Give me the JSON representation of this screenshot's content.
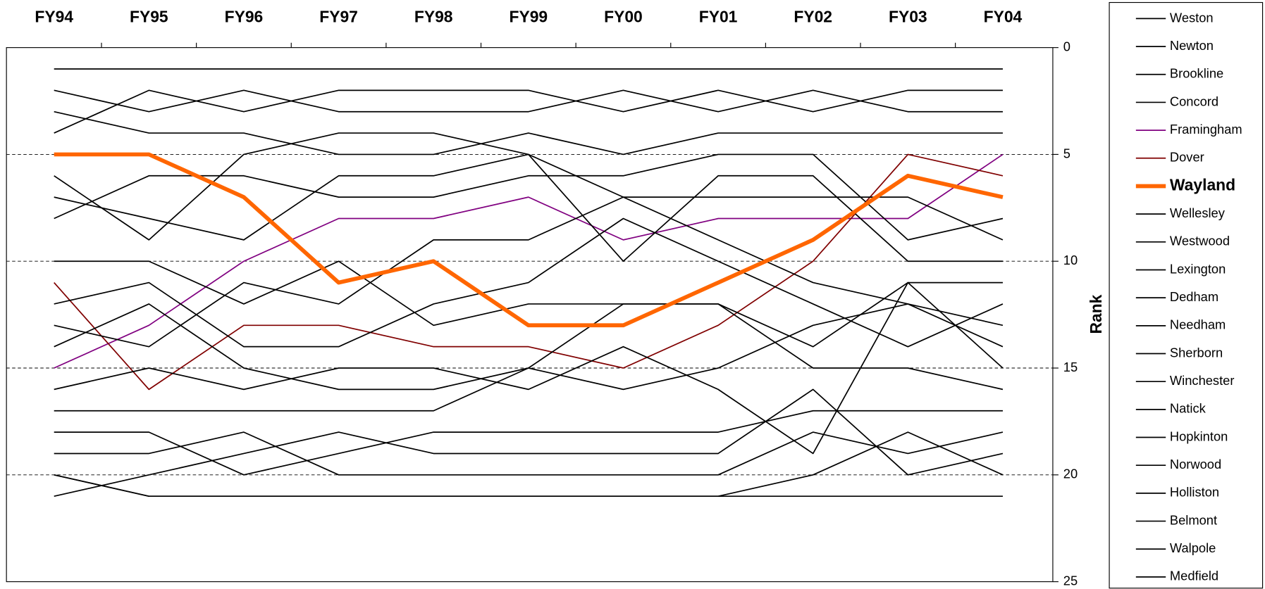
{
  "chart_data": {
    "type": "line",
    "y_label": "Rank",
    "categories": [
      "FY94",
      "FY95",
      "FY96",
      "FY97",
      "FY98",
      "FY99",
      "FY00",
      "FY01",
      "FY02",
      "FY03",
      "FY04"
    ],
    "ylim": [
      0,
      25
    ],
    "yticks": [
      0,
      5,
      10,
      15,
      20,
      25
    ],
    "y_inverted": true,
    "grid": true,
    "legend": "right",
    "series": [
      {
        "name": "Weston",
        "color": "#000000",
        "values": [
          1,
          1,
          1,
          1,
          1,
          1,
          1,
          1,
          1,
          1,
          1
        ]
      },
      {
        "name": "Newton",
        "color": "#000000",
        "values": [
          4,
          2,
          3,
          2,
          2,
          2,
          3,
          2,
          3,
          2,
          2
        ]
      },
      {
        "name": "Brookline",
        "color": "#000000",
        "values": [
          2,
          3,
          2,
          3,
          3,
          3,
          2,
          3,
          2,
          3,
          3
        ]
      },
      {
        "name": "Concord",
        "color": "#000000",
        "values": [
          3,
          4,
          4,
          5,
          5,
          4,
          5,
          4,
          4,
          4,
          4
        ]
      },
      {
        "name": "Framingham",
        "color": "#800080",
        "values": [
          15,
          13,
          10,
          8,
          8,
          7,
          9,
          8,
          8,
          8,
          5
        ]
      },
      {
        "name": "Dover",
        "color": "#800000",
        "values": [
          11,
          16,
          13,
          13,
          14,
          14,
          15,
          13,
          10,
          5,
          6
        ]
      },
      {
        "name": "Wayland",
        "color": "#ff6600",
        "line_width": 5,
        "values": [
          5,
          5,
          7,
          11,
          10,
          13,
          13,
          11,
          9,
          6,
          7
        ]
      },
      {
        "name": "Wellesley",
        "color": "#000000",
        "values": [
          8,
          6,
          6,
          7,
          7,
          6,
          6,
          5,
          5,
          9,
          8
        ]
      },
      {
        "name": "Westwood",
        "color": "#000000",
        "values": [
          6,
          9,
          5,
          4,
          4,
          5,
          7,
          7,
          7,
          7,
          9
        ]
      },
      {
        "name": "Lexington",
        "color": "#000000",
        "values": [
          7,
          8,
          9,
          6,
          6,
          5,
          10,
          6,
          6,
          10,
          10
        ]
      },
      {
        "name": "Dedham",
        "color": "#000000",
        "values": [
          10,
          10,
          12,
          10,
          13,
          12,
          12,
          12,
          14,
          11,
          11
        ]
      },
      {
        "name": "Needham",
        "color": "#000000",
        "values": [
          12,
          11,
          14,
          14,
          12,
          11,
          8,
          10,
          12,
          14,
          12
        ]
      },
      {
        "name": "Sherborn",
        "color": "#000000",
        "values": [
          13,
          14,
          11,
          12,
          9,
          9,
          7,
          9,
          11,
          12,
          13
        ]
      },
      {
        "name": "Winchester",
        "color": "#000000",
        "values": [
          14,
          12,
          15,
          16,
          16,
          15,
          16,
          15,
          13,
          12,
          14
        ]
      },
      {
        "name": "Natick",
        "color": "#000000",
        "values": [
          16,
          15,
          16,
          15,
          15,
          16,
          14,
          16,
          19,
          11,
          15
        ]
      },
      {
        "name": "Hopkinton",
        "color": "#000000",
        "values": [
          17,
          17,
          17,
          17,
          17,
          15,
          12,
          12,
          15,
          15,
          16
        ]
      },
      {
        "name": "Norwood",
        "color": "#000000",
        "values": [
          18,
          18,
          20,
          19,
          18,
          18,
          18,
          18,
          17,
          17,
          17
        ]
      },
      {
        "name": "Holliston",
        "color": "#000000",
        "values": [
          19,
          19,
          18,
          20,
          20,
          20,
          20,
          20,
          18,
          19,
          18
        ]
      },
      {
        "name": "Belmont",
        "color": "#000000",
        "values": [
          21,
          20,
          19,
          18,
          19,
          19,
          19,
          19,
          16,
          20,
          19
        ]
      },
      {
        "name": "Walpole",
        "color": "#000000",
        "values": [
          20,
          21,
          21,
          21,
          21,
          21,
          21,
          21,
          20,
          18,
          20
        ]
      },
      {
        "name": "Medfield",
        "color": "#000000",
        "values": [
          20,
          21,
          21,
          21,
          21,
          21,
          21,
          21,
          21,
          21,
          21
        ]
      }
    ]
  }
}
